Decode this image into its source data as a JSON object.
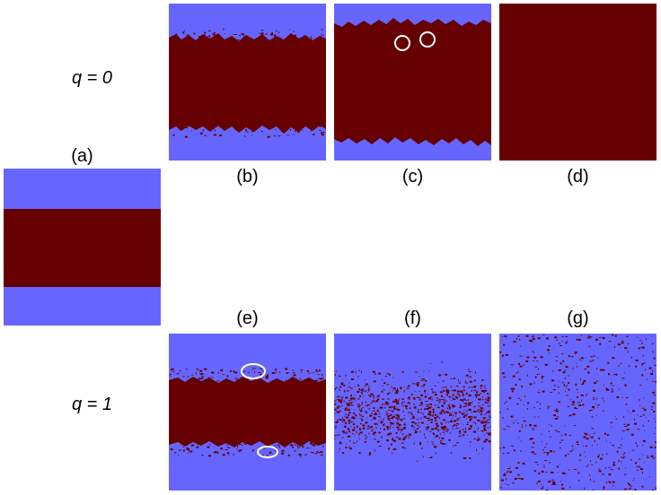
{
  "colors": {
    "fluid_a": "#6666ff",
    "fluid_b": "#660000",
    "marker": "#ffffff"
  },
  "row_labels": {
    "q0": "q = 0",
    "q1": "q = 1"
  },
  "panels": [
    {
      "id": "a",
      "label": "(a)"
    },
    {
      "id": "b",
      "label": "(b)"
    },
    {
      "id": "c",
      "label": "(c)"
    },
    {
      "id": "d",
      "label": "(d)"
    },
    {
      "id": "e",
      "label": "(e)"
    },
    {
      "id": "f",
      "label": "(f)"
    },
    {
      "id": "g",
      "label": "(g)"
    }
  ]
}
